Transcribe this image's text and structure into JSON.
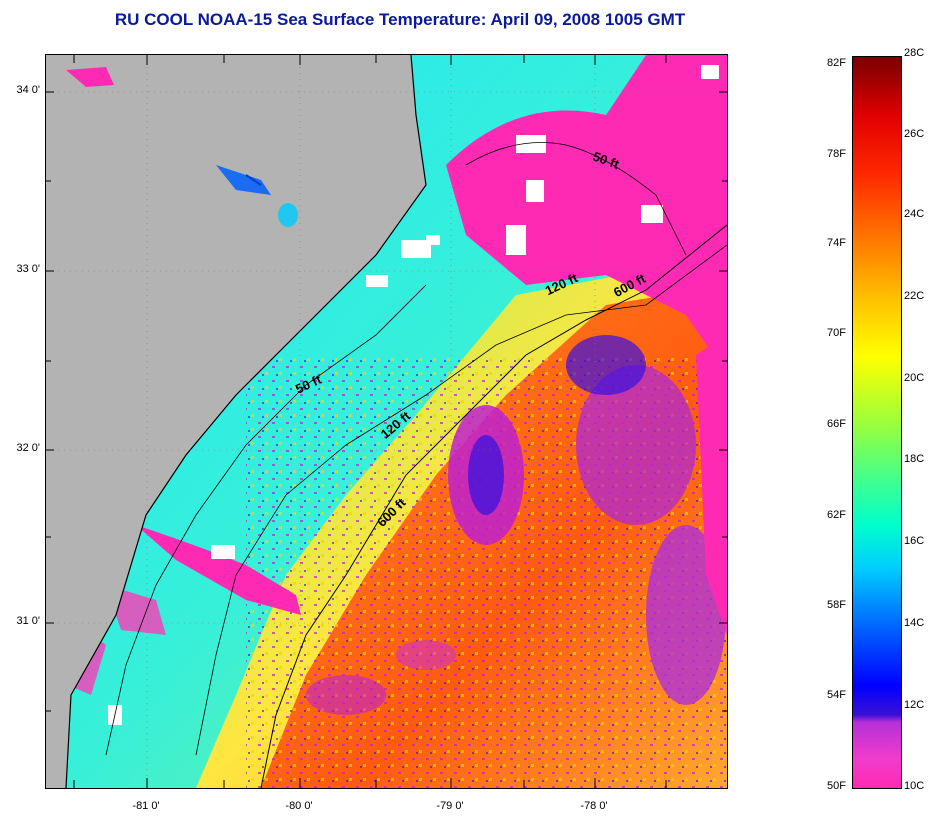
{
  "title": "RU COOL  NOAA-15  Sea Surface Temperature:  April 09, 2008 1005 GMT",
  "latitude_labels": [
    "34 0'",
    "33 0'",
    "32 0'",
    "31 0'"
  ],
  "longitude_labels": [
    "-81 0'",
    "-80 0'",
    "-79 0'",
    "-78 0'"
  ],
  "contour_labels": {
    "north_50": "50 ft",
    "north_120": "120 ft",
    "north_600": "600 ft",
    "south_50": "50 ft",
    "south_120": "120 ft",
    "south_600": "600 ft"
  },
  "colorbar": {
    "fahrenheit_labels": [
      "82F",
      "78F",
      "74F",
      "70F",
      "66F",
      "62F",
      "58F",
      "54F",
      "50F"
    ],
    "celsius_labels": [
      "28C",
      "26C",
      "24C",
      "22C",
      "20C",
      "18C",
      "16C",
      "14C",
      "12C",
      "10C"
    ],
    "min_color": "#ff2ab4",
    "max_color": "#7a0000"
  },
  "colors": {
    "title": "#0a1a9a",
    "land": "#b3b3b3",
    "cold_water": "#ff2ab4",
    "shelf_water": "#22e0f0",
    "gulf_stream": "#ff8c1a"
  }
}
